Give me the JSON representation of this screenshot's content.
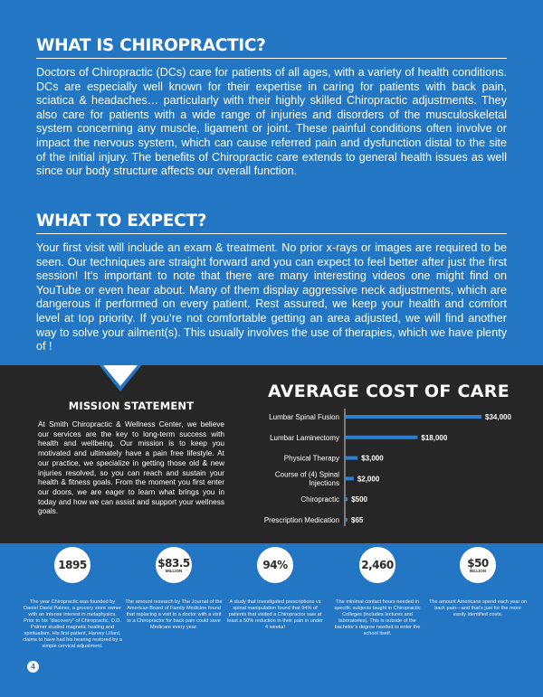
{
  "section1": {
    "title": "WHAT IS CHIROPRACTIC?",
    "body": "Doctors of Chiropractic (DCs) care for patients of all ages, with a variety of health conditions. DCs are especially well known for their expertise in caring for patients with back pain, sciatica & headaches… particularly with their highly skilled Chiropractic adjustments. They also care for patients with a wide range of injuries and disorders of the musculoskeletal system concerning any muscle, ligament or joint. These painful conditions often involve or impact the nervous system, which can cause referred pain and dysfunction distal to the site of the initial injury. The benefits of Chiropractic care extends to general health issues as well since our body structure affects our overall function."
  },
  "section2": {
    "title": "WHAT TO EXPECT?",
    "body": "Your first visit will include an exam & treatment. No prior x-rays or images are required to be seen. Our techniques are straight forward and you can expect to feel better after just the first session! It’s important to note that there are many interesting videos one might find on YouTube or even hear about. Many of them display aggressive neck adjustments, which are dangerous if performed on every patient. Rest assured, we keep your health and comfort level at top priority. If you’re not comfortable getting an area adjusted, we will find another way to solve your ailment(s). This usually involves the use of therapies, which we have plenty of !"
  },
  "mission": {
    "title": "MISSION STATEMENT",
    "body": "At Smith Chiropractic & Wellness Center, we believe our services are the key to long-term success with health and wellbeing. Our mission is to keep you motivated and ultimately have a pain free lifestyle. At our practice, we specialize in getting those old & new injuries resolved, so you can reach and sustain your health & fitness goals. From the moment you first enter our doors, we are eager to learn what brings you in today and how we can assist and support your wellness goals."
  },
  "chart_data": {
    "type": "bar",
    "orientation": "horizontal",
    "title": "AVERAGE COST OF CARE",
    "categories": [
      "Lumbar Spinal Fusion",
      "Lumbar Laminectomy",
      "Physical Therapy",
      "Course of (4) Spinal Injections",
      "Chiropractic",
      "Prescription Medication"
    ],
    "values": [
      34000,
      18000,
      3000,
      2000,
      500,
      65
    ],
    "labels": [
      "$34,000",
      "$18,000",
      "$3,000",
      "$2,000",
      "$500",
      "$65"
    ],
    "grid": false,
    "legend": "none",
    "colors": {
      "bar": "#2f7fd0",
      "text": "#ffffff"
    }
  },
  "stats": [
    {
      "number": "1895",
      "unit": "",
      "desc": "The year Chiropractic was founded by Daniel David Palmer, a grocery store owner with an intense interest in metaphysics. Prior to his \"discovery\" of Chiropractic, D.D. Palmer studied magnetic healing and spiritualism. His first patient, Harvey Lillard, claims to have had his hearing restored by a simple cervical adjustment."
    },
    {
      "number": "$83.5",
      "unit": "MILLION",
      "desc": "The amount research by The Journal of the American Board of Family Medicine found that replacing a visit to a doctor with a visit to a Chiropractor for back pain could save Medicare every year."
    },
    {
      "number": "94%",
      "unit": "",
      "desc": "A study that investigated prescriptions vs spinal manipulation found that 94% of patients that visited a Chiropractor saw at least a 50% reduction in their pain in under 4 weeks!"
    },
    {
      "number": "2,460",
      "unit": "",
      "desc": "The minimal contact hours needed in specific subjects taught in Chiropractic Colleges (includes lectures and laboratories). This is outside of the bachelor’s degree needed to enter the school itself."
    },
    {
      "number": "$50",
      "unit": "BILLION",
      "desc": "The amount Americans spend each year on back pain—and that’s just for the more easily identified costs."
    }
  ],
  "page_number": "4",
  "colors": {
    "page_bg": "#2376c4",
    "dark_band": "#262626",
    "circle": "#ffffff"
  }
}
